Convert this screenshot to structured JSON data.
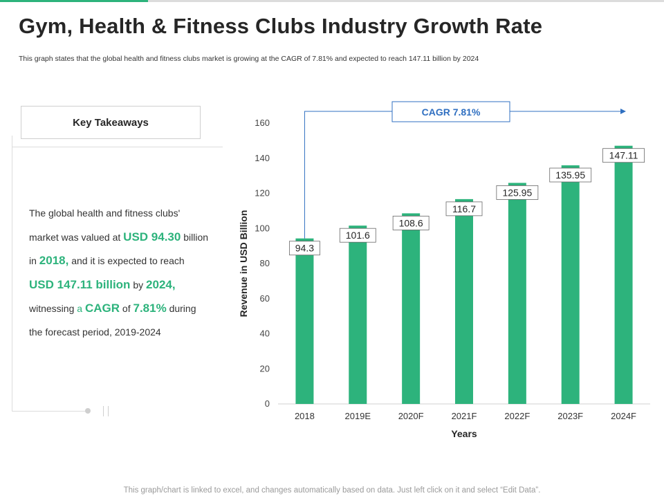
{
  "header": {
    "title": "Gym, Health & Fitness Clubs Industry Growth Rate",
    "subtitle": "This graph states that the global health and fitness clubs market is growing at the CAGR of 7.81%  and expected to reach 147.11 billion by 2024"
  },
  "takeaways": {
    "heading": "Key Takeaways",
    "text_1": "The global health and fitness clubs' market was valued at ",
    "highlight_1": "USD 94.30",
    "text_2": " billion in ",
    "highlight_2": "2018,",
    "text_3": " and it is expected to reach ",
    "highlight_3": "USD 147.11 billion",
    "text_4": " by ",
    "highlight_4": "2024,",
    "text_5": " witnessing ",
    "highlight_5": "a",
    "text_6": " ",
    "highlight_6": "CAGR",
    "text_7": " of ",
    "highlight_7": "7.81%",
    "text_8": " during the forecast period, 2019-2024"
  },
  "chart_data": {
    "type": "bar",
    "categories": [
      "2018",
      "2019E",
      "2020F",
      "2021F",
      "2022F",
      "2023F",
      "2024F"
    ],
    "values": [
      94.3,
      101.6,
      108.6,
      116.7,
      125.95,
      135.95,
      147.11
    ],
    "labels": [
      "94.3",
      "101.6",
      "108.6",
      "116.7",
      "125.95",
      "135.95",
      "147.11"
    ],
    "yticks": [
      "0",
      "20",
      "40",
      "60",
      "80",
      "100",
      "120",
      "140",
      "160"
    ],
    "ylim": [
      0,
      160
    ],
    "xlabel": "Years",
    "ylabel": "Revenue in USD Billion",
    "annotation": "CAGR 7.81%",
    "bar_color": "#2db37c",
    "arrow_color": "#2f6fc1"
  },
  "footer": {
    "note": "This graph/chart is linked to excel, and changes automatically based on data. Just left click on it and select “Edit Data”."
  }
}
